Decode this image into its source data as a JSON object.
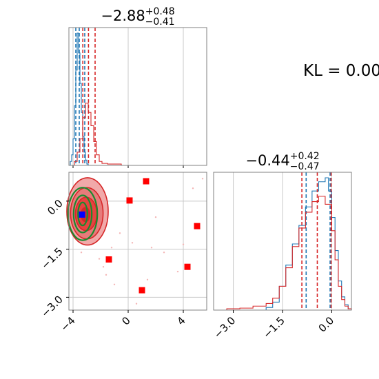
{
  "chart_data": {
    "type": "corner",
    "grid": true,
    "annotation": "KL = 0.00",
    "panels": [
      {
        "kind": "histogram",
        "parameter_index": 0,
        "title": {
          "base": "−2.88",
          "upper": "+0.48",
          "lower": "−0.41"
        },
        "xlim": [
          -4.3,
          5.7
        ],
        "series": [
          {
            "name": "",
            "color": "#1f77b4",
            "bins": [
              [
                -4.3,
                0
              ],
              [
                -4.2,
                0.03
              ],
              [
                -4.1,
                0.08
              ],
              [
                -4.0,
                0.2
              ],
              [
                -3.9,
                0.45
              ],
              [
                -3.8,
                0.72
              ],
              [
                -3.7,
                1.0
              ],
              [
                -3.6,
                0.85
              ],
              [
                -3.5,
                0.62
              ],
              [
                -3.4,
                0.4
              ],
              [
                -3.3,
                0.22
              ],
              [
                -3.2,
                0.1
              ],
              [
                -3.1,
                0.04
              ],
              [
                -3.0,
                0.01
              ],
              [
                -2.9,
                0
              ]
            ],
            "quantile_lines": [
              -3.8,
              -3.55,
              -3.15
            ]
          },
          {
            "name": "",
            "color": "#d62728",
            "bins": [
              [
                -4.1,
                0
              ],
              [
                -3.9,
                0.03
              ],
              [
                -3.7,
                0.1
              ],
              [
                -3.5,
                0.2
              ],
              [
                -3.3,
                0.36
              ],
              [
                -3.1,
                0.47
              ],
              [
                -2.9,
                0.4
              ],
              [
                -2.7,
                0.3
              ],
              [
                -2.5,
                0.18
              ],
              [
                -2.3,
                0.08
              ],
              [
                -2.1,
                0.03
              ],
              [
                -1.9,
                0.015
              ],
              [
                -1.5,
                0.01
              ],
              [
                -1.0,
                0.01
              ],
              [
                -0.5,
                0
              ]
            ],
            "quantile_lines": [
              -3.29,
              -2.88,
              -2.4
            ]
          }
        ]
      },
      {
        "kind": "2d",
        "xlim": [
          -4.3,
          5.7
        ],
        "ylim": [
          -3.4,
          0.9
        ],
        "xticks": [
          -4,
          0,
          4
        ],
        "xticklabels": [
          "−4",
          "0",
          "4"
        ],
        "yticks": [
          0.0,
          -1.5,
          -3.0
        ],
        "yticklabels": [
          "0.0",
          "−1.5",
          "−3.0"
        ],
        "red_squares": [
          [
            1.3,
            0.62
          ],
          [
            0.1,
            0.02
          ],
          [
            5.0,
            -0.78
          ],
          [
            -1.4,
            -1.82
          ],
          [
            4.3,
            -2.05
          ],
          [
            1.0,
            -2.78
          ]
        ],
        "blue_marker": [
          -3.35,
          -0.42
        ],
        "red_contours": [
          {
            "cx": -2.95,
            "cy": -0.32,
            "rx": 1.5,
            "ry": 1.05,
            "fill": "#ef9a9a"
          },
          {
            "cx": -3.0,
            "cy": -0.38,
            "rx": 1.18,
            "ry": 0.8,
            "fill": "#e57373"
          },
          {
            "cx": -3.05,
            "cy": -0.4,
            "rx": 0.78,
            "ry": 0.52,
            "fill": "#e53935"
          },
          {
            "cx": -3.1,
            "cy": -0.42,
            "rx": 0.32,
            "ry": 0.22,
            "fill": "#c62828"
          }
        ],
        "green_contours": [
          {
            "cx": -3.3,
            "cy": -0.4,
            "rx": 1.06,
            "ry": 0.82
          },
          {
            "cx": -3.3,
            "cy": -0.4,
            "rx": 0.66,
            "ry": 0.58
          },
          {
            "cx": -3.3,
            "cy": -0.4,
            "rx": 0.34,
            "ry": 0.36
          }
        ],
        "scatter": [
          [
            -1.8,
            -2.05
          ],
          [
            -1.6,
            -2.3
          ],
          [
            0.3,
            -1.3
          ],
          [
            1.7,
            -1.45
          ],
          [
            2.6,
            -1.6
          ],
          [
            4.0,
            -1.35
          ],
          [
            3.6,
            -2.2
          ],
          [
            -0.6,
            -1.0
          ],
          [
            -2.1,
            -1.8
          ],
          [
            2.0,
            -0.5
          ],
          [
            1.4,
            -2.45
          ],
          [
            -1.0,
            -2.6
          ],
          [
            0.6,
            -3.2
          ],
          [
            5.4,
            0.7
          ],
          [
            4.7,
            0.4
          ],
          [
            -2.4,
            -1.2
          ],
          [
            -3.4,
            -1.6
          ],
          [
            -1.2,
            -1.45
          ]
        ]
      },
      {
        "kind": "histogram",
        "parameter_index": 1,
        "title": {
          "base": "−0.44",
          "upper": "+0.42",
          "lower": "−0.47"
        },
        "xlim": [
          -3.6,
          0.6
        ],
        "xticks": [
          -3.0,
          -1.5,
          0.0
        ],
        "xticklabels": [
          "−3.0",
          "−1.5",
          "0.0"
        ],
        "series": [
          {
            "name": "",
            "color": "#1f77b4",
            "bins": [
              [
                -2.2,
                0
              ],
              [
                -2.0,
                0.02
              ],
              [
                -1.8,
                0.06
              ],
              [
                -1.6,
                0.18
              ],
              [
                -1.4,
                0.34
              ],
              [
                -1.2,
                0.5
              ],
              [
                -1.0,
                0.64
              ],
              [
                -0.8,
                0.78
              ],
              [
                -0.6,
                0.9
              ],
              [
                -0.4,
                0.97
              ],
              [
                -0.2,
                1.0
              ],
              [
                -0.1,
                0.9
              ],
              [
                0.0,
                0.7
              ],
              [
                0.1,
                0.45
              ],
              [
                0.2,
                0.22
              ],
              [
                0.3,
                0.1
              ],
              [
                0.4,
                0.04
              ],
              [
                0.5,
                0.01
              ],
              [
                0.6,
                0
              ]
            ],
            "quantile_lines": [
              -0.78,
              -0.05
            ]
          },
          {
            "name": "",
            "color": "#d62728",
            "bins": [
              [
                -3.6,
                0
              ],
              [
                -3.2,
                0.01
              ],
              [
                -2.8,
                0.015
              ],
              [
                -2.4,
                0.03
              ],
              [
                -2.0,
                0.05
              ],
              [
                -1.8,
                0.09
              ],
              [
                -1.6,
                0.18
              ],
              [
                -1.4,
                0.32
              ],
              [
                -1.2,
                0.48
              ],
              [
                -1.0,
                0.62
              ],
              [
                -0.8,
                0.74
              ],
              [
                -0.6,
                0.82
              ],
              [
                -0.4,
                0.86
              ],
              [
                -0.2,
                0.8
              ],
              [
                0.0,
                0.6
              ],
              [
                0.1,
                0.38
              ],
              [
                0.2,
                0.18
              ],
              [
                0.3,
                0.08
              ],
              [
                0.4,
                0.03
              ],
              [
                0.5,
                0.01
              ],
              [
                0.6,
                0
              ]
            ],
            "quantile_lines": [
              -0.91,
              -0.44,
              -0.02
            ]
          }
        ]
      }
    ]
  }
}
